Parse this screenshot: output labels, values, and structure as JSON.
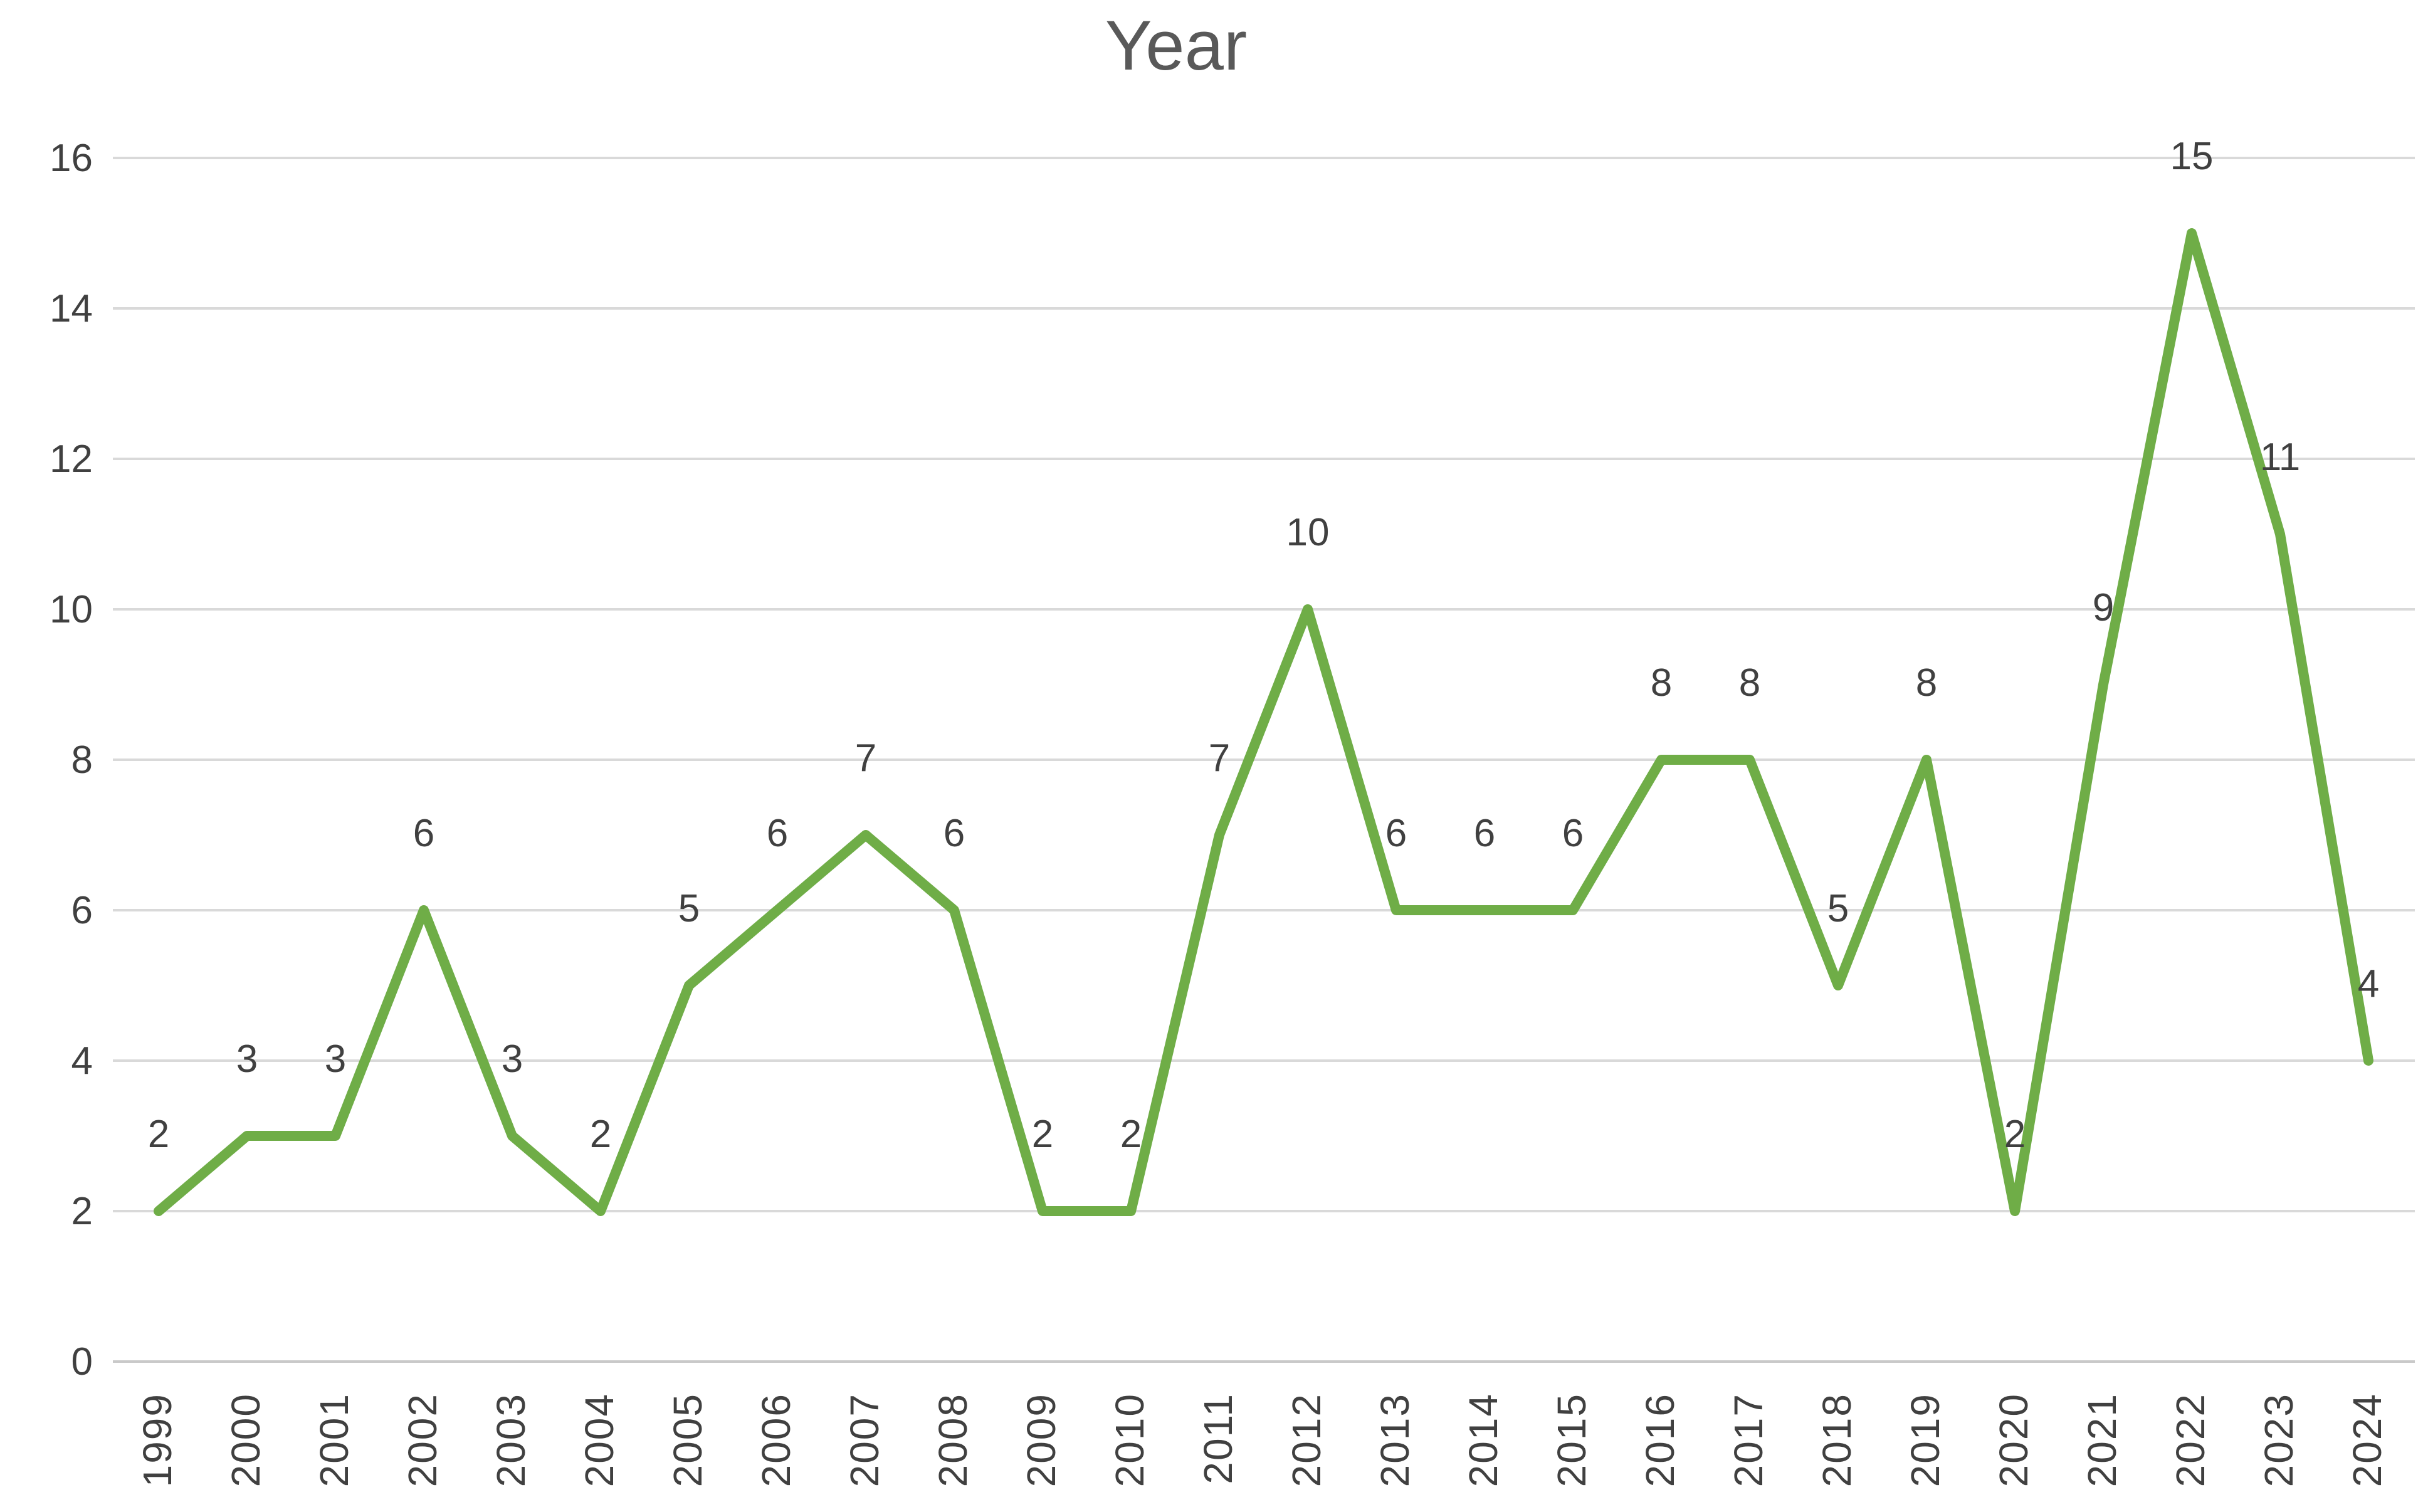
{
  "chart_data": {
    "type": "line",
    "title": "Year",
    "categories": [
      "1999",
      "2000",
      "2001",
      "2002",
      "2003",
      "2004",
      "2005",
      "2006",
      "2007",
      "2008",
      "2009",
      "2010",
      "2011",
      "2012",
      "2013",
      "2014",
      "2015",
      "2016",
      "2017",
      "2018",
      "2019",
      "2020",
      "2021",
      "2022",
      "2023",
      "2024"
    ],
    "series": [
      {
        "name": "Year",
        "values": [
          2,
          3,
          3,
          6,
          3,
          2,
          5,
          6,
          7,
          6,
          2,
          2,
          7,
          10,
          6,
          6,
          6,
          8,
          8,
          5,
          8,
          2,
          9,
          15,
          11,
          4
        ]
      }
    ],
    "y_ticks": [
      0,
      2,
      4,
      6,
      8,
      10,
      12,
      14,
      16
    ],
    "ylim": [
      0,
      16
    ],
    "grid": true,
    "legend_position": "none",
    "data_labels_shown": true,
    "colors": {
      "line": "#6FAD47",
      "labels": "#404040",
      "gridlines": "#D9D9D9",
      "axis_line": "#C9C9C9",
      "title": "#595959",
      "background": "#FFFFFF"
    }
  }
}
